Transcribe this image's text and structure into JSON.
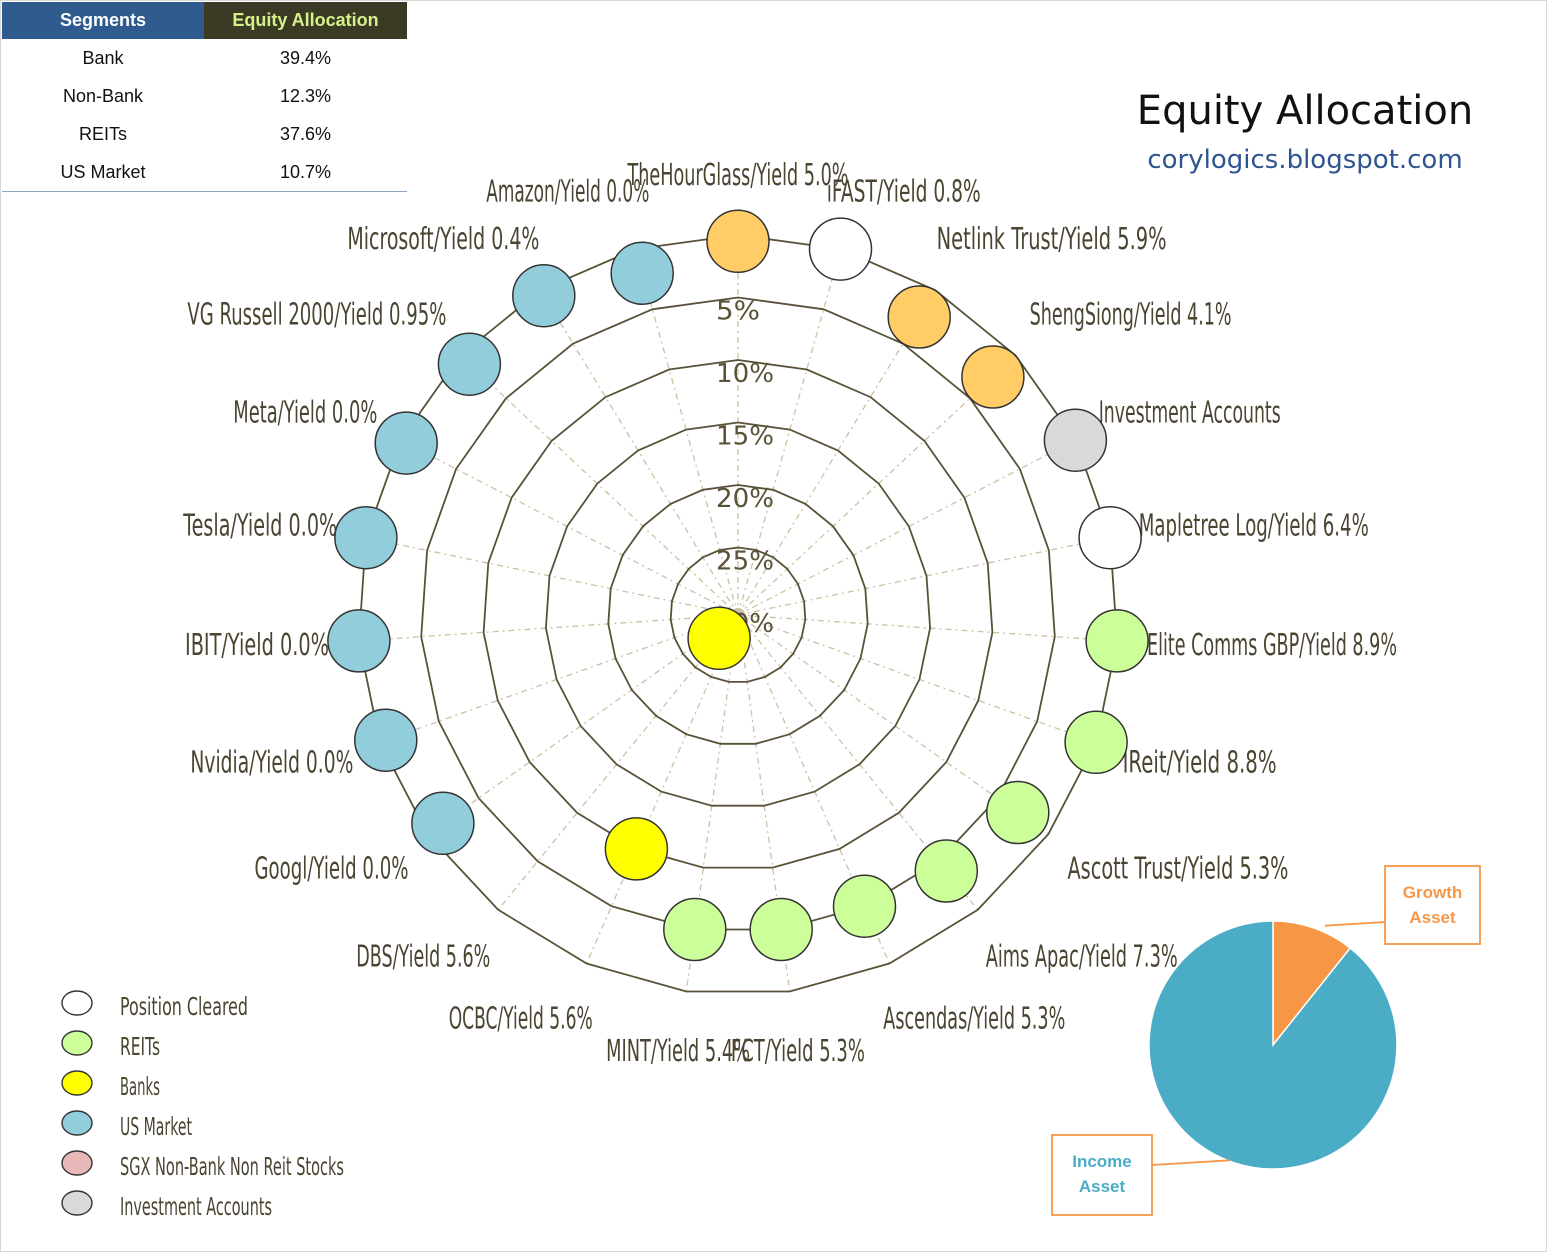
{
  "table": {
    "headers": [
      "Segments",
      "Equity Allocation"
    ],
    "rows": [
      {
        "segment": "Bank",
        "allocation": "39.4%"
      },
      {
        "segment": "Non-Bank",
        "allocation": "12.3%"
      },
      {
        "segment": "REITs",
        "allocation": "37.6%"
      },
      {
        "segment": "US Market",
        "allocation": "10.7%"
      }
    ]
  },
  "header": {
    "title": "Equity Allocation",
    "subtitle": "corylogics.blogspot.com"
  },
  "colors": {
    "Position Cleared": "#ffffff",
    "REITs": "#ccff99",
    "Banks": "#ffff00",
    "US Market": "#92cddc",
    "SGX Non-Bank Non Reit Stocks": "#e6b8b7",
    "Investment Accounts": "#d9d9d9",
    "Other": "#ffcc66",
    "Income Asset": "#4bacc6",
    "Growth Asset": "#f79646"
  },
  "chart_data": [
    {
      "type": "radar-bubble",
      "radial_axis": {
        "ticks": [
          "0%",
          "5%",
          "10%",
          "15%",
          "20%",
          "25%",
          "30%"
        ],
        "range": [
          0,
          30
        ],
        "reversed": true
      },
      "points": [
        {
          "label": "TheHourGlass/Yield 5.0%",
          "value": 0.5,
          "category": "Other"
        },
        {
          "label": "iFAST/Yield 0.8%",
          "value": 0.0,
          "category": "Position Cleared"
        },
        {
          "label": "Netlink Trust/Yield 5.9%",
          "value": 2.5,
          "category": "Other"
        },
        {
          "label": "ShengSiong/Yield 4.1%",
          "value": 2.5,
          "category": "Other"
        },
        {
          "label": "Investment Accounts",
          "value": 0.0,
          "category": "Investment Accounts"
        },
        {
          "label": "Mapletree Log/Yield 6.4%",
          "value": 0.0,
          "category": "Position Cleared"
        },
        {
          "label": "Elite Comms GBP/Yield 8.9%",
          "value": 0.0,
          "category": "REITs"
        },
        {
          "label": "IReit/Yield 8.8%",
          "value": 0.0,
          "category": "REITs"
        },
        {
          "label": "Ascott Trust/Yield 5.3%",
          "value": 3.0,
          "category": "REITs"
        },
        {
          "label": "Aims Apac/Yield 7.3%",
          "value": 4.0,
          "category": "REITs"
        },
        {
          "label": "Ascendas/Yield 5.3%",
          "value": 5.0,
          "category": "REITs"
        },
        {
          "label": "FCT/Yield 5.3%",
          "value": 5.0,
          "category": "REITs"
        },
        {
          "label": "MINT/Yield 5.4%",
          "value": 5.0,
          "category": "REITs"
        },
        {
          "label": "OCBC/Yield 5.6%",
          "value": 10.0,
          "category": "Banks"
        },
        {
          "label": "DBS/Yield 5.6%",
          "value": 28.0,
          "category": "Banks"
        },
        {
          "label": "Googl/Yield 0.0%",
          "value": 1.5,
          "category": "US Market"
        },
        {
          "label": "Nvidia/Yield 0.0%",
          "value": 0.5,
          "category": "US Market"
        },
        {
          "label": "IBIT/Yield 0.0%",
          "value": 0.0,
          "category": "US Market"
        },
        {
          "label": "Tesla/Yield 0.0%",
          "value": 0.0,
          "category": "US Market"
        },
        {
          "label": "Meta/Yield 0.0%",
          "value": 0.5,
          "category": "US Market"
        },
        {
          "label": "VG Russell 2000/Yield 0.95%",
          "value": 1.0,
          "category": "US Market"
        },
        {
          "label": "Microsoft/Yield 0.4%",
          "value": 0.5,
          "category": "US Market"
        },
        {
          "label": "Amazon/Yield 0.0%",
          "value": 2.0,
          "category": "US Market"
        }
      ],
      "legend": {
        "position": "bottom-left",
        "items": [
          "Position Cleared",
          "REITs",
          "Banks",
          "US Market",
          "SGX Non-Bank Non Reit Stocks",
          "Investment Accounts"
        ]
      }
    },
    {
      "type": "pie",
      "slices": [
        {
          "label": "Growth Asset",
          "value": 10.7
        },
        {
          "label": "Income Asset",
          "value": 89.3
        }
      ]
    }
  ]
}
